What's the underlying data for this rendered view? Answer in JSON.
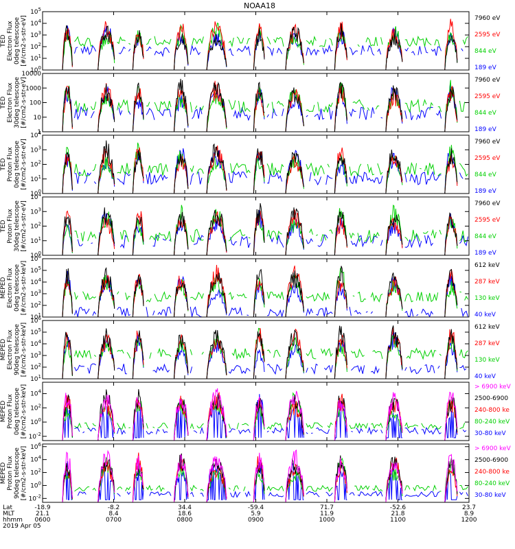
{
  "title": "NOAA18",
  "colors": {
    "black": "#000000",
    "red": "#ff0000",
    "green": "#00d000",
    "blue": "#0000ff",
    "magenta": "#ff00ff"
  },
  "panels": [
    {
      "id": "ted-e-0",
      "ylabel": [
        "TED",
        "Electron Flux",
        "0deg telescope",
        "[#/cm2-s-str-eV]"
      ],
      "yticks": [
        "10^0",
        "10^1",
        "10^2",
        "10^3",
        "10^4",
        "10^5"
      ],
      "log_range": [
        0,
        5
      ],
      "legend": [
        {
          "text": "7960 eV",
          "color": "black"
        },
        {
          "text": "2595 eV",
          "color": "red"
        },
        {
          "text": "844 eV",
          "color": "green"
        },
        {
          "text": "189 eV",
          "color": "blue"
        }
      ]
    },
    {
      "id": "ted-e-30",
      "ylabel": [
        "TED",
        "Electron Flux",
        "30deg telescope",
        "[#/cm2-s-str-eV]"
      ],
      "yticks": [
        "1",
        "10",
        "100",
        "1000",
        "10000"
      ],
      "log_range": [
        0,
        4
      ],
      "legend": [
        {
          "text": "7960 eV",
          "color": "black"
        },
        {
          "text": "2595 eV",
          "color": "red"
        },
        {
          "text": "844 eV",
          "color": "green"
        },
        {
          "text": "189 eV",
          "color": "blue"
        }
      ]
    },
    {
      "id": "ted-p-0",
      "ylabel": [
        "TED",
        "Proton Flux",
        "0deg telescope",
        "[#/cm2-s-str-eV]"
      ],
      "yticks": [
        "10^0",
        "10^1",
        "10^2",
        "10^3",
        "10^4"
      ],
      "log_range": [
        0,
        4
      ],
      "legend": [
        {
          "text": "7960 eV",
          "color": "black"
        },
        {
          "text": "2595 eV",
          "color": "red"
        },
        {
          "text": "844 eV",
          "color": "green"
        },
        {
          "text": "189 eV",
          "color": "blue"
        }
      ]
    },
    {
      "id": "ted-p-30",
      "ylabel": [
        "TED",
        "Proton Flux",
        "30deg telescope",
        "[#/cm2-s-str-eV]"
      ],
      "yticks": [
        "10^0",
        "10^1",
        "10^2",
        "10^3",
        "10^4"
      ],
      "log_range": [
        0,
        4
      ],
      "legend": [
        {
          "text": "7960 eV",
          "color": "black"
        },
        {
          "text": "2595 eV",
          "color": "red"
        },
        {
          "text": "844 eV",
          "color": "green"
        },
        {
          "text": "189 eV",
          "color": "blue"
        }
      ]
    },
    {
      "id": "meped-e-0",
      "ylabel": [
        "MEPED",
        "Electron Flux",
        "0deg telescope",
        "[#/cm2-s-str-keV]"
      ],
      "yticks": [
        "10^1",
        "10^2",
        "10^3",
        "10^4",
        "10^5",
        "10^6"
      ],
      "log_range": [
        1,
        6
      ],
      "legend": [
        {
          "text": "612 keV",
          "color": "black"
        },
        {
          "text": "287 keV",
          "color": "red"
        },
        {
          "text": "130 keV",
          "color": "green"
        },
        {
          "text": "40 keV",
          "color": "blue"
        }
      ]
    },
    {
      "id": "meped-e-90",
      "ylabel": [
        "MEPED",
        "Electron Flux",
        "90deg telescope",
        "[#/cm2-s-str-keV]"
      ],
      "yticks": [
        "10^1",
        "10^2",
        "10^3",
        "10^4",
        "10^5",
        "10^6"
      ],
      "log_range": [
        1,
        6
      ],
      "legend": [
        {
          "text": "612 keV",
          "color": "black"
        },
        {
          "text": "287 keV",
          "color": "red"
        },
        {
          "text": "130 keV",
          "color": "green"
        },
        {
          "text": "40 keV",
          "color": "blue"
        }
      ]
    },
    {
      "id": "meped-p-0",
      "ylabel": [
        "MEPED",
        "Proton Flux",
        "0deg telescope",
        "[#/cm2-s-str-keV]"
      ],
      "yticks": [
        "10^-2",
        "10^0",
        "10^2",
        "10^4"
      ],
      "log_range": [
        -2.6,
        5.6
      ],
      "legend": [
        {
          "text": "> 6900 keV",
          "color": "magenta"
        },
        {
          "text": "2500-6900",
          "color": "black"
        },
        {
          "text": "240-800 ke",
          "color": "red"
        },
        {
          "text": "80-240 keV",
          "color": "green"
        },
        {
          "text": "30-80 keV",
          "color": "blue"
        }
      ]
    },
    {
      "id": "meped-p-90",
      "ylabel": [
        "MEPED",
        "Proton Flux",
        "90deg telescope",
        "[#/cm2-s-str-keV]"
      ],
      "yticks": [
        "10^-2",
        "10^0",
        "10^2",
        "10^4",
        "10^6"
      ],
      "log_range": [
        -2.6,
        6.4
      ],
      "legend": [
        {
          "text": "> 6900 keV",
          "color": "magenta"
        },
        {
          "text": "2500-6900",
          "color": "black"
        },
        {
          "text": "240-800 ke",
          "color": "red"
        },
        {
          "text": "80-240 keV",
          "color": "green"
        },
        {
          "text": "30-80 keV",
          "color": "blue"
        }
      ]
    }
  ],
  "xaxis": {
    "row_labels": [
      "Lat",
      "MLT",
      "hhmm"
    ],
    "date": "2019 Apr 05",
    "ticks": [
      {
        "lat": "-18.9",
        "mlt": "21.1",
        "hhmm": "0600"
      },
      {
        "lat": "-8.2",
        "mlt": "8.4",
        "hhmm": "0700"
      },
      {
        "lat": "34.4",
        "mlt": "18.6",
        "hhmm": "0800"
      },
      {
        "lat": "-59.4",
        "mlt": "5.9",
        "hhmm": "0900"
      },
      {
        "lat": "71.7",
        "mlt": "11.9",
        "hhmm": "1000"
      },
      {
        "lat": "-52.6",
        "mlt": "21.8",
        "hhmm": "1100"
      },
      {
        "lat": "23.7",
        "mlt": "8.9",
        "hhmm": "1200"
      }
    ]
  },
  "chart_data": {
    "type": "line",
    "title": "NOAA18",
    "x_range_hours": [
      6,
      12
    ],
    "passes": [
      {
        "name": "p1",
        "center_hour": 6.35,
        "half_width": 0.07
      },
      {
        "name": "p2",
        "center_hour": 6.9,
        "half_width": 0.12
      },
      {
        "name": "p3",
        "center_hour": 7.35,
        "half_width": 0.08
      },
      {
        "name": "p4",
        "center_hour": 7.95,
        "half_width": 0.1
      },
      {
        "name": "p5",
        "center_hour": 8.45,
        "half_width": 0.14
      },
      {
        "name": "p6",
        "center_hour": 9.05,
        "half_width": 0.08
      },
      {
        "name": "p7",
        "center_hour": 9.55,
        "half_width": 0.13
      },
      {
        "name": "p8",
        "center_hour": 10.2,
        "half_width": 0.09
      },
      {
        "name": "p9",
        "center_hour": 10.95,
        "half_width": 0.12
      },
      {
        "name": "p10",
        "center_hour": 11.75,
        "half_width": 0.09
      }
    ],
    "note_levels_log10": {
      "ted-e-0": [
        1.5,
        2.3,
        2.8,
        1.7
      ],
      "ted-e-30": [
        1.1,
        1.6,
        2.1,
        2.5
      ],
      "ted-p-0": [
        0.9,
        1.5,
        1.4,
        2.3
      ],
      "ted-p-30": [
        0.8,
        1.2,
        1.5,
        2.2
      ],
      "meped-e-0": [
        1.3,
        2.6,
        3.3,
        3.9
      ],
      "meped-e-90": [
        1.7,
        3.0,
        3.9,
        4.6
      ],
      "meped-p-0": [
        -1.4,
        -0.7,
        0.0,
        1.3,
        2.6
      ],
      "meped-p-90": [
        -1.5,
        -0.6,
        0.2,
        1.1,
        2.5
      ]
    }
  }
}
